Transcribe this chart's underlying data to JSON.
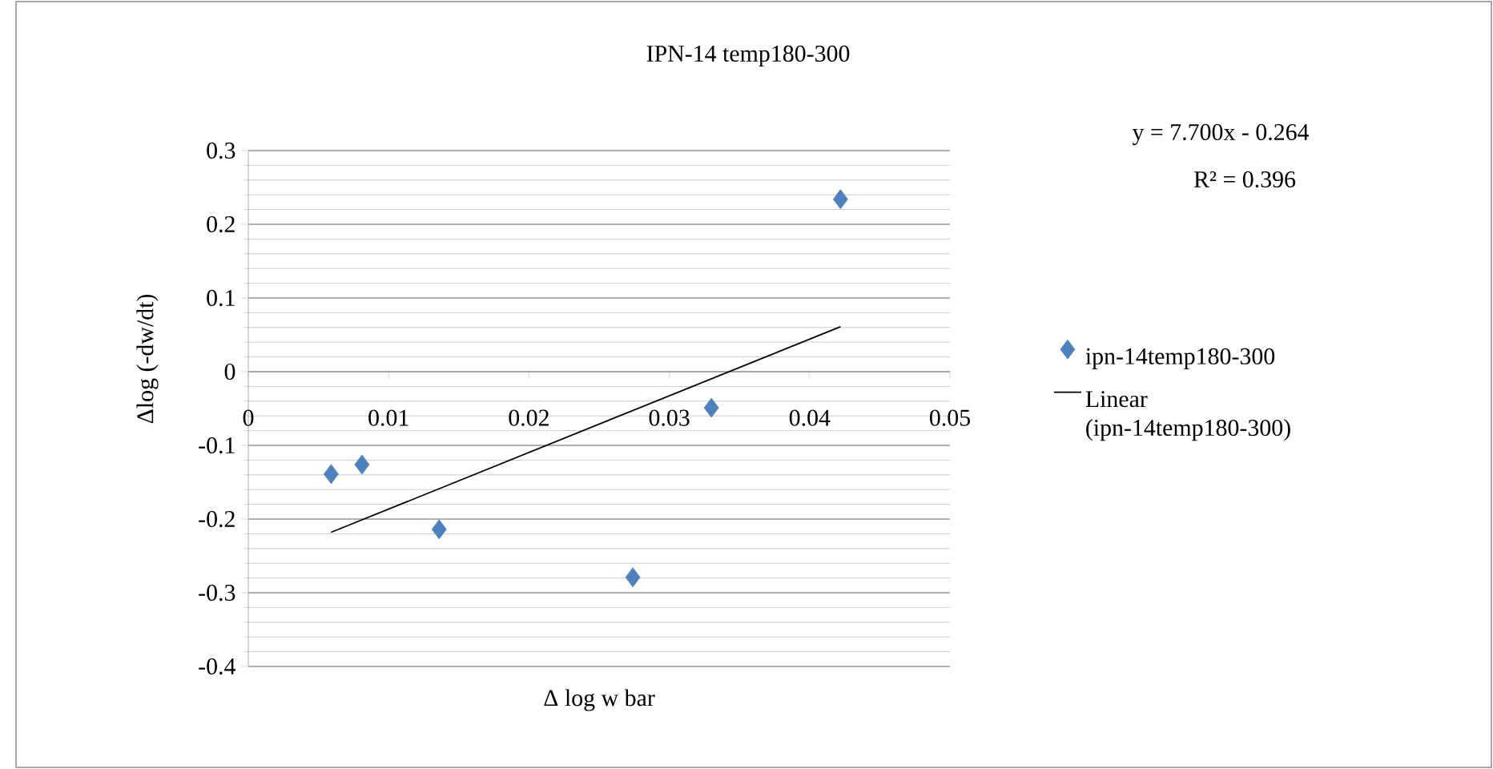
{
  "chart_data": {
    "type": "scatter",
    "title": "IPN-14 temp180-300",
    "xlabel": "Δ log w bar",
    "ylabel": "Δlog (-dw/dt)",
    "annotations": [
      "y = 7.700x - 0.264",
      "R² = 0.396"
    ],
    "xlim": [
      0,
      0.05
    ],
    "xticks": [
      0,
      0.01,
      0.02,
      0.03,
      0.04,
      0.05
    ],
    "ylim": [
      -0.4,
      0.3
    ],
    "yticks": [
      -0.4,
      -0.3,
      -0.2,
      -0.1,
      0,
      0.1,
      0.2,
      0.3
    ],
    "grid": "y",
    "legend": "right",
    "series": [
      {
        "name": "ipn-14temp180-300",
        "marker": "diamond",
        "color": "#4f81bd",
        "x": [
          0.0059,
          0.0081,
          0.0136,
          0.0274,
          0.033,
          0.0422
        ],
        "values": [
          -0.139,
          -0.126,
          -0.214,
          -0.279,
          -0.049,
          0.234
        ]
      },
      {
        "name": "Linear (ipn-14temp180-300)",
        "type": "line",
        "marker": "none",
        "line_style": "solid",
        "color": "#000000",
        "x": [
          0.0059,
          0.0422
        ],
        "values": [
          -0.218,
          0.061
        ]
      }
    ]
  }
}
